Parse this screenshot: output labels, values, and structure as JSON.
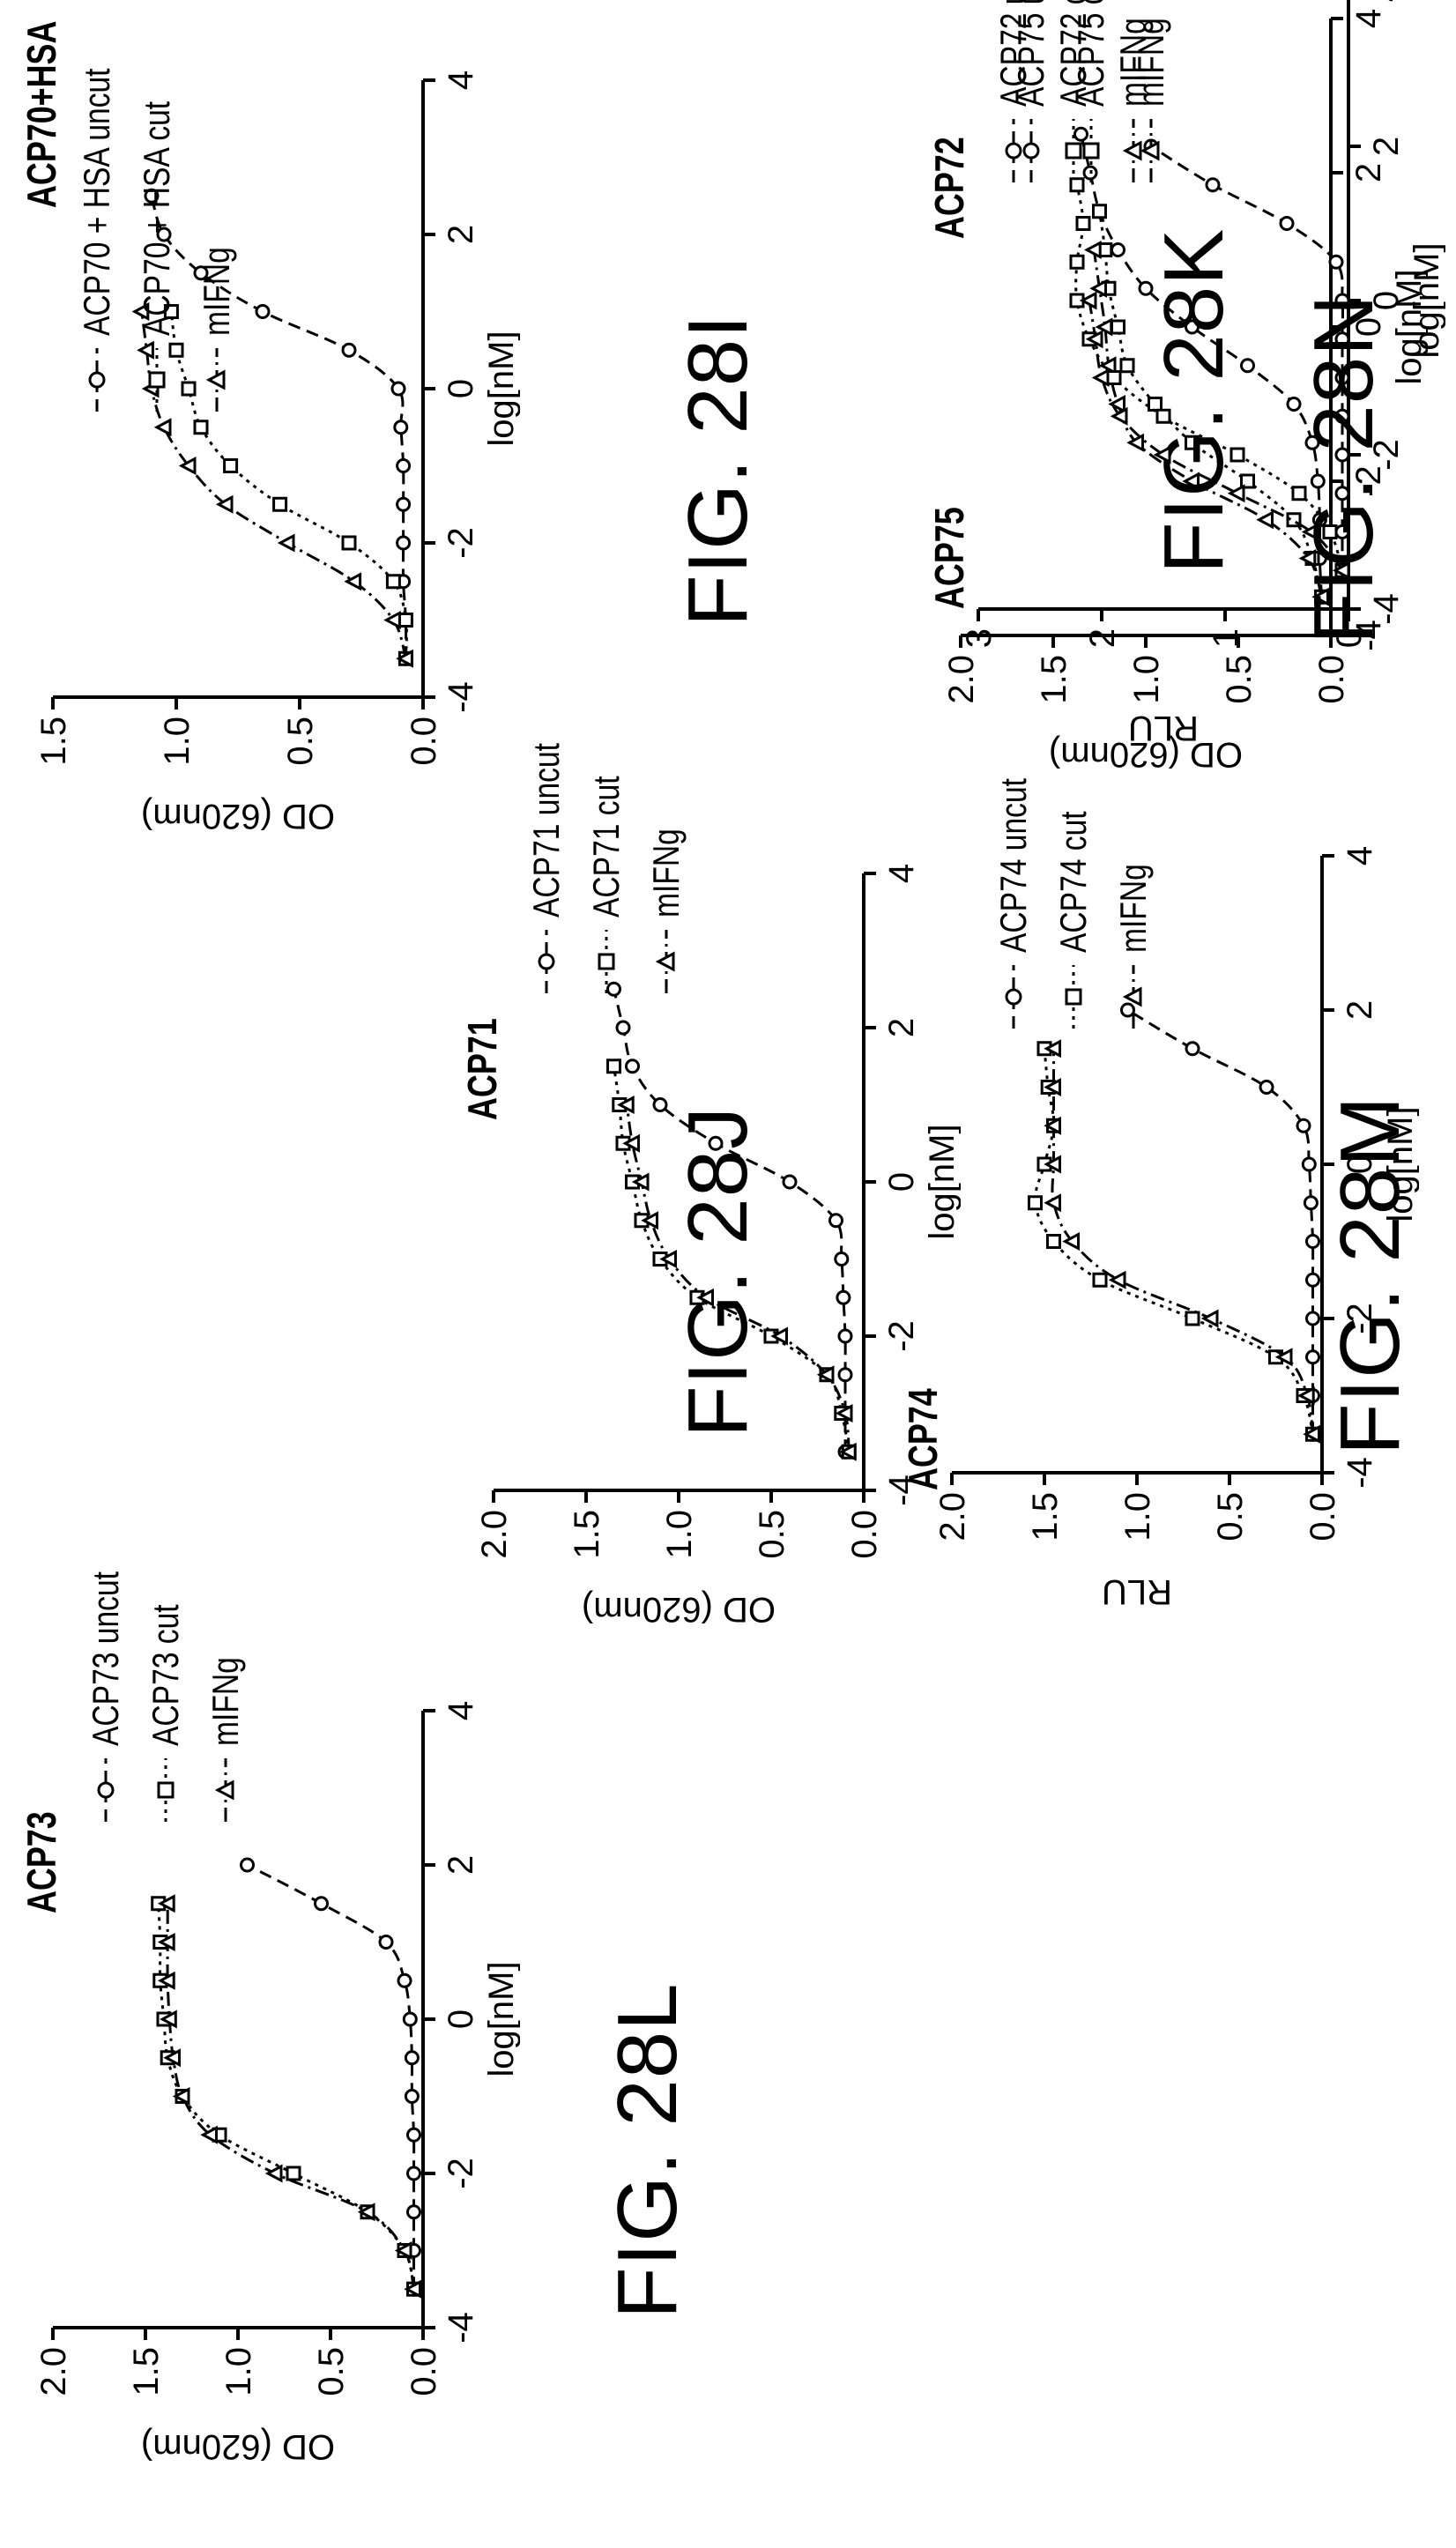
{
  "panels": [
    {
      "id": "28I",
      "title": "ACP70+HSA",
      "figure_label": "FIG. 28I",
      "legend": [
        "ACP70 + HSA uncut",
        "ACP70 + HSA cut",
        "mIFNg"
      ]
    },
    {
      "id": "28J",
      "title": "ACP71",
      "figure_label": "FIG. 28J",
      "legend": [
        "ACP71 uncut",
        "ACP71 cut",
        "mIFNg"
      ]
    },
    {
      "id": "28K",
      "title": "ACP72",
      "figure_label": "FIG. 28K",
      "legend": [
        "ACP72 uncut",
        "ACP72 cut",
        "mIFNg"
      ]
    },
    {
      "id": "28L",
      "title": "ACP73",
      "figure_label": "FIG. 28L",
      "legend": [
        "ACP73 uncut",
        "ACP73 cut",
        "mIFNg"
      ]
    },
    {
      "id": "28M",
      "title": "ACP74",
      "figure_label": "FIG. 28M",
      "legend": [
        "ACP74 uncut",
        "ACP74 cut",
        "mIFNg"
      ]
    },
    {
      "id": "28N",
      "title": "ACP75",
      "figure_label": "FIG. 28N",
      "legend": [
        "ACP75 uncut",
        "ACP75 cut",
        "mIFNg"
      ]
    }
  ],
  "chart_data": [
    {
      "type": "scatter",
      "title": "ACP70+HSA",
      "xlabel": "log[nM]",
      "ylabel": "OD (620nm)",
      "xlim": [
        -4,
        4
      ],
      "ylim": [
        0,
        1.5
      ],
      "xticks": [
        -4,
        -2,
        0,
        2,
        4
      ],
      "yticks": [
        0.0,
        0.5,
        1.0,
        1.5
      ],
      "yticklabels": [
        "0.0",
        "0.5",
        "1.0",
        "1.5"
      ],
      "series": [
        {
          "name": "ACP70 + HSA uncut",
          "marker": "circle",
          "line": "dashed",
          "x": [
            -3.5,
            -3.0,
            -2.5,
            -2.0,
            -1.5,
            -1.0,
            -0.5,
            0.0,
            0.5,
            1.0,
            1.5,
            2.0,
            2.5
          ],
          "y": [
            0.07,
            0.07,
            0.08,
            0.08,
            0.08,
            0.08,
            0.09,
            0.1,
            0.3,
            0.65,
            0.9,
            1.05,
            1.1
          ]
        },
        {
          "name": "ACP70 + HSA cut",
          "marker": "square",
          "line": "dotted",
          "x": [
            -3.5,
            -3.0,
            -2.5,
            -2.0,
            -1.5,
            -1.0,
            -0.5,
            0.0,
            0.5,
            1.0
          ],
          "y": [
            0.07,
            0.07,
            0.12,
            0.3,
            0.58,
            0.78,
            0.9,
            0.95,
            1.0,
            1.02
          ]
        },
        {
          "name": "mIFNg",
          "marker": "triangle",
          "line": "dashdot",
          "x": [
            -3.5,
            -3.0,
            -2.5,
            -2.0,
            -1.5,
            -1.0,
            -0.5,
            0.0,
            0.5,
            1.0
          ],
          "y": [
            0.07,
            0.12,
            0.28,
            0.55,
            0.8,
            0.95,
            1.05,
            1.1,
            1.12,
            1.14
          ]
        }
      ]
    },
    {
      "type": "scatter",
      "title": "ACP71",
      "xlabel": "log[nM]",
      "ylabel": "OD (620nm)",
      "xlim": [
        -4,
        4
      ],
      "ylim": [
        0,
        2.0
      ],
      "xticks": [
        -4,
        -2,
        0,
        2,
        4
      ],
      "yticks": [
        0.0,
        0.5,
        1.0,
        1.5,
        2.0
      ],
      "yticklabels": [
        "0.0",
        "0.5",
        "1.0",
        "1.5",
        "2.0"
      ],
      "series": [
        {
          "name": "ACP71 uncut",
          "marker": "circle",
          "line": "dashed",
          "x": [
            -3.5,
            -3.0,
            -2.5,
            -2.0,
            -1.5,
            -1.0,
            -0.5,
            0.0,
            0.5,
            1.0,
            1.5,
            2.0,
            2.5
          ],
          "y": [
            0.1,
            0.1,
            0.1,
            0.1,
            0.11,
            0.12,
            0.15,
            0.4,
            0.8,
            1.1,
            1.25,
            1.3,
            1.35
          ]
        },
        {
          "name": "ACP71 cut",
          "marker": "square",
          "line": "dotted",
          "x": [
            -3.5,
            -3.0,
            -2.5,
            -2.0,
            -1.5,
            -1.0,
            -0.5,
            0.0,
            0.5,
            1.0,
            1.5
          ],
          "y": [
            0.08,
            0.12,
            0.2,
            0.5,
            0.9,
            1.1,
            1.2,
            1.25,
            1.3,
            1.32,
            1.35
          ]
        },
        {
          "name": "mIFNg",
          "marker": "triangle",
          "line": "dashdot",
          "x": [
            -3.5,
            -3.0,
            -2.5,
            -2.0,
            -1.5,
            -1.0,
            -0.5,
            0.0,
            0.5,
            1.0
          ],
          "y": [
            0.08,
            0.1,
            0.2,
            0.45,
            0.85,
            1.05,
            1.15,
            1.2,
            1.25,
            1.28
          ]
        }
      ]
    },
    {
      "type": "scatter",
      "title": "ACP72",
      "xlabel": "log[nM]",
      "ylabel": "OD (620nm)",
      "xlim": [
        -4,
        4
      ],
      "ylim": [
        0,
        2.0
      ],
      "xticks": [
        -4,
        -2,
        0,
        2,
        4
      ],
      "yticks": [
        0.0,
        0.5,
        1.0,
        1.5,
        2.0
      ],
      "yticklabels": [
        "0.0",
        "0.5",
        "1.0",
        "1.5",
        "2.0"
      ],
      "series": [
        {
          "name": "ACP72 uncut",
          "marker": "circle",
          "line": "dashed",
          "x": [
            -3.5,
            -3.0,
            -2.5,
            -2.0,
            -1.5,
            -1.0,
            -0.5,
            0.0,
            0.5,
            1.0,
            1.5,
            2.0,
            2.5
          ],
          "y": [
            0.05,
            0.06,
            0.06,
            0.07,
            0.1,
            0.2,
            0.45,
            0.75,
            1.0,
            1.15,
            1.25,
            1.3,
            1.35
          ]
        },
        {
          "name": "ACP72 cut",
          "marker": "square",
          "line": "dotted",
          "x": [
            -3.5,
            -3.0,
            -2.5,
            -2.0,
            -1.5,
            -1.0,
            -0.5,
            0.0,
            0.5,
            1.0,
            1.5
          ],
          "y": [
            0.05,
            0.1,
            0.2,
            0.45,
            0.75,
            0.95,
            1.1,
            1.15,
            1.2,
            1.22,
            1.25
          ]
        },
        {
          "name": "mIFNg",
          "marker": "triangle",
          "line": "dashdot",
          "x": [
            -3.5,
            -3.0,
            -2.5,
            -2.0,
            -1.5,
            -1.0,
            -0.5,
            0.0,
            0.5,
            1.0
          ],
          "y": [
            0.05,
            0.12,
            0.35,
            0.75,
            1.05,
            1.15,
            1.2,
            1.22,
            1.25,
            1.28
          ]
        }
      ]
    },
    {
      "type": "scatter",
      "title": "ACP73",
      "xlabel": "log[nM]",
      "ylabel": "OD (620nm)",
      "xlim": [
        -4,
        4
      ],
      "ylim": [
        0,
        2.0
      ],
      "xticks": [
        -4,
        -2,
        0,
        2,
        4
      ],
      "yticks": [
        0.0,
        0.5,
        1.0,
        1.5,
        2.0
      ],
      "yticklabels": [
        "0.0",
        "0.5",
        "1.0",
        "1.5",
        "2.0"
      ],
      "series": [
        {
          "name": "ACP73 uncut",
          "marker": "circle",
          "line": "dashed",
          "x": [
            -3.5,
            -3.0,
            -2.5,
            -2.0,
            -1.5,
            -1.0,
            -0.5,
            0.0,
            0.5,
            1.0,
            1.5,
            2.0
          ],
          "y": [
            0.05,
            0.05,
            0.05,
            0.05,
            0.05,
            0.06,
            0.06,
            0.07,
            0.1,
            0.2,
            0.55,
            0.95
          ]
        },
        {
          "name": "ACP73 cut",
          "marker": "square",
          "line": "dotted",
          "x": [
            -3.5,
            -3.0,
            -2.5,
            -2.0,
            -1.5,
            -1.0,
            -0.5,
            0.0,
            0.5,
            1.0,
            1.5
          ],
          "y": [
            0.05,
            0.1,
            0.3,
            0.7,
            1.1,
            1.3,
            1.38,
            1.4,
            1.42,
            1.42,
            1.43
          ]
        },
        {
          "name": "mIFNg",
          "marker": "triangle",
          "line": "dashdot",
          "x": [
            -3.5,
            -3.0,
            -2.5,
            -2.0,
            -1.5,
            -1.0,
            -0.5,
            0.0,
            0.5,
            1.0,
            1.5
          ],
          "y": [
            0.05,
            0.1,
            0.3,
            0.8,
            1.15,
            1.3,
            1.35,
            1.37,
            1.38,
            1.38,
            1.38
          ]
        }
      ]
    },
    {
      "type": "scatter",
      "title": "ACP74",
      "xlabel": "log[nM]",
      "ylabel": "RLU",
      "xlim": [
        -4,
        4
      ],
      "ylim": [
        0,
        2.0
      ],
      "xticks": [
        -4,
        -2,
        0,
        2,
        4
      ],
      "yticks": [
        0.0,
        0.5,
        1.0,
        1.5,
        2.0
      ],
      "yticklabels": [
        "0.0",
        "0.5",
        "1.0",
        "1.5",
        "2.0"
      ],
      "series": [
        {
          "name": "ACP74 uncut",
          "marker": "circle",
          "line": "dashed",
          "x": [
            -3.5,
            -3.0,
            -2.5,
            -2.0,
            -1.5,
            -1.0,
            -0.5,
            0.0,
            0.5,
            1.0,
            1.5,
            2.0
          ],
          "y": [
            0.05,
            0.05,
            0.05,
            0.05,
            0.05,
            0.05,
            0.06,
            0.07,
            0.1,
            0.3,
            0.7,
            1.05
          ]
        },
        {
          "name": "ACP74 cut",
          "marker": "square",
          "line": "dotted",
          "x": [
            -3.5,
            -3.0,
            -2.5,
            -2.0,
            -1.5,
            -1.0,
            -0.5,
            0.0,
            0.5,
            1.0,
            1.5
          ],
          "y": [
            0.05,
            0.1,
            0.25,
            0.7,
            1.2,
            1.45,
            1.55,
            1.5,
            1.45,
            1.48,
            1.5
          ]
        },
        {
          "name": "mIFNg",
          "marker": "triangle",
          "line": "dashdot",
          "x": [
            -3.5,
            -3.0,
            -2.5,
            -2.0,
            -1.5,
            -1.0,
            -0.5,
            0.0,
            0.5,
            1.0,
            1.5
          ],
          "y": [
            0.05,
            0.08,
            0.2,
            0.6,
            1.1,
            1.35,
            1.45,
            1.45,
            1.45,
            1.45,
            1.45
          ]
        }
      ]
    },
    {
      "type": "scatter",
      "title": "ACP75",
      "xlabel": "log[nM]",
      "ylabel": "RLU",
      "xlim": [
        -4,
        4
      ],
      "ylim": [
        0,
        3
      ],
      "xticks": [
        -4,
        -2,
        0,
        2,
        4
      ],
      "yticks": [
        0,
        1,
        2,
        3
      ],
      "yticklabels": [
        "0",
        "1",
        "2",
        "3"
      ],
      "series": [
        {
          "name": "ACP75 uncut",
          "marker": "circle",
          "line": "dashed",
          "x": [
            -3.5,
            -3.0,
            -2.5,
            -2.0,
            -1.5,
            -1.0,
            -0.5,
            0.0,
            0.5,
            1.0,
            1.5,
            2.0
          ],
          "y": [
            0.05,
            0.05,
            0.05,
            0.05,
            0.05,
            0.05,
            0.05,
            0.05,
            0.1,
            0.5,
            1.1,
            1.6
          ]
        },
        {
          "name": "ACP75 cut",
          "marker": "square",
          "line": "dotted",
          "x": [
            -3.5,
            -3.0,
            -2.5,
            -2.0,
            -1.5,
            -1.0,
            -0.5,
            0.0,
            0.5,
            1.0,
            1.5
          ],
          "y": [
            0.05,
            0.15,
            0.4,
            0.9,
            1.5,
            1.9,
            2.1,
            2.2,
            2.2,
            2.15,
            2.2
          ]
        },
        {
          "name": "mIFNg",
          "marker": "triangle",
          "line": "dashdot",
          "x": [
            -3.5,
            -3.0,
            -2.5,
            -2.0,
            -1.5,
            -1.0,
            -0.5,
            0.0
          ],
          "y": [
            0.05,
            0.3,
            0.9,
            1.5,
            1.85,
            2.0,
            2.05,
            2.1
          ]
        }
      ]
    }
  ]
}
